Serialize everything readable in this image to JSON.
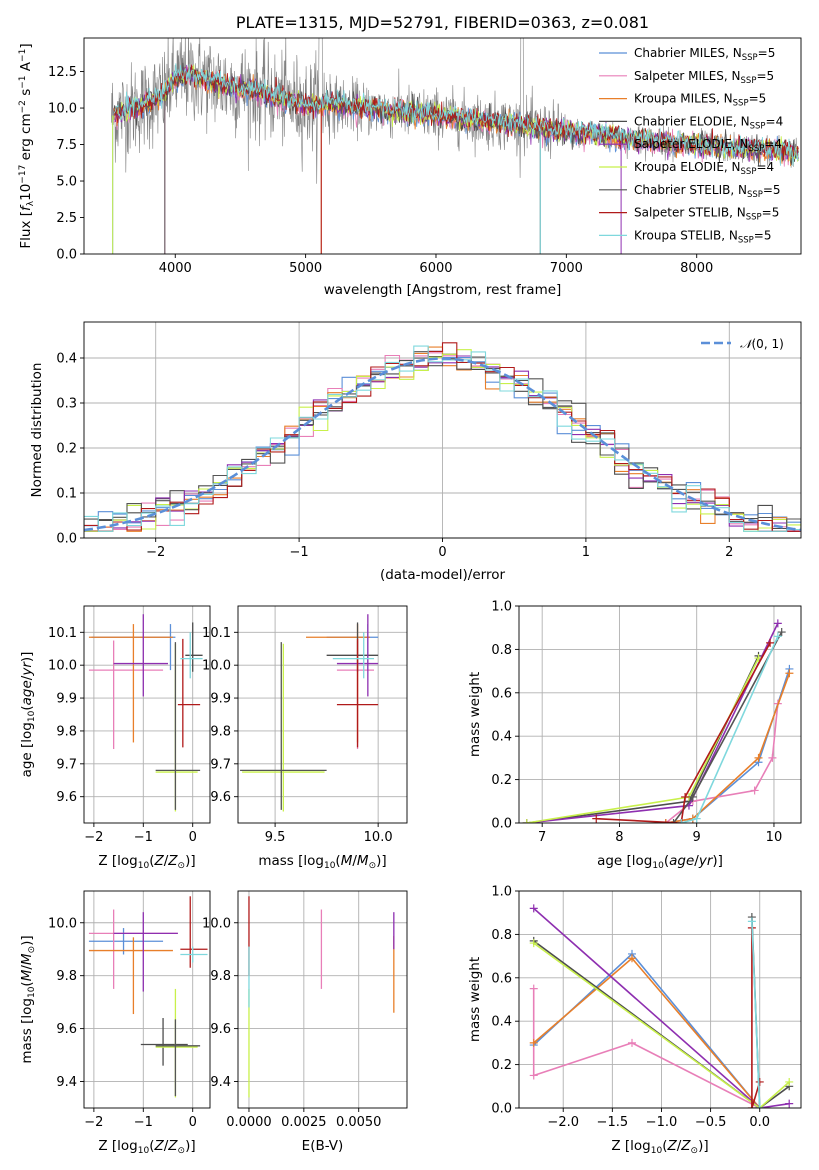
{
  "chart_data": [
    {
      "id": "spectrum",
      "type": "line",
      "title": "PLATE=1315, MJD=52791, FIBERID=0363, z=0.081",
      "xlabel": "wavelength [Angstrom, rest frame]",
      "ylabel": "Flux [f_λ 10^-17 erg cm^-2 s^-1 A^-1]",
      "xlim": [
        3300,
        8800
      ],
      "ylim": [
        0,
        14.8
      ],
      "xticks": [
        4000,
        5000,
        6000,
        7000,
        8000
      ],
      "yticks": [
        "0.0",
        "2.5",
        "5.0",
        "7.5",
        "10.0",
        "12.5"
      ],
      "legend_position": "upper right",
      "data_series": {
        "name": "data",
        "color": "#808080"
      },
      "series": [
        {
          "name": "Chabrier MILES, N_SSP=5",
          "color": "#5b8fd8"
        },
        {
          "name": "Salpeter MILES, N_SSP=5",
          "color": "#e87fb8"
        },
        {
          "name": "Kroupa MILES, N_SSP=5",
          "color": "#e87f2a"
        },
        {
          "name": "Chabrier ELODIE, N_SSP=4",
          "color": "#4d4d4d"
        },
        {
          "name": "Salpeter ELODIE, N_SSP=4",
          "color": "#8e2fb0"
        },
        {
          "name": "Kroupa ELODIE, N_SSP=4",
          "color": "#c8f04a"
        },
        {
          "name": "Chabrier STELIB, N_SSP=5",
          "color": "#555555"
        },
        {
          "name": "Salpeter STELIB, N_SSP=5",
          "color": "#b01a1a"
        },
        {
          "name": "Kroupa STELIB, N_SSP=5",
          "color": "#7fd8dd"
        }
      ],
      "continuum": {
        "wavelength": [
          3520,
          3700,
          3900,
          4000,
          4100,
          4200,
          4400,
          4600,
          4800,
          5000,
          5200,
          5500,
          5800,
          6000,
          6300,
          6600,
          6800,
          7000,
          7200,
          7400,
          7600,
          7800,
          8000,
          8200,
          8400,
          8600,
          8780
        ],
        "flux": [
          9.5,
          10.0,
          10.8,
          12.0,
          12.3,
          12.0,
          11.5,
          11.2,
          10.7,
          10.2,
          10.3,
          9.9,
          9.7,
          9.5,
          9.2,
          8.9,
          8.6,
          8.4,
          8.2,
          8.0,
          7.8,
          7.6,
          7.5,
          7.3,
          7.2,
          7.1,
          7.0
        ]
      }
    },
    {
      "id": "residuals",
      "type": "bar",
      "xlabel": "(data-model)/error",
      "ylabel": "Normed distribution",
      "xlim": [
        -2.5,
        2.5
      ],
      "ylim": [
        0,
        0.48
      ],
      "xticks": [
        "−2",
        "−1",
        "0",
        "1",
        "2"
      ],
      "yticks": [
        "0.0",
        "0.1",
        "0.2",
        "0.3",
        "0.4"
      ],
      "legend": {
        "label": "N(0,1)",
        "position": "upper right",
        "color": "#5b8fd8"
      },
      "bin_width": 0.1
    },
    {
      "id": "age_vs_Z",
      "type": "scatter",
      "xlabel": "Z [log10(Z/Z⊙)]",
      "ylabel": "age  [log10(age/yr)]",
      "xlim": [
        -2.2,
        0.35
      ],
      "ylim": [
        9.52,
        10.18
      ],
      "xticks": [
        "−2",
        "−1",
        "0"
      ],
      "yticks": [
        "9.6",
        "9.7",
        "9.8",
        "9.9",
        "10.0",
        "10.1"
      ],
      "points": [
        {
          "color": "#5b8fd8",
          "x": -0.45,
          "y": 10.085,
          "xerr": [
            1.6,
            0.1
          ],
          "yerr": [
            0.1,
            0.04
          ]
        },
        {
          "color": "#e87fb8",
          "x": -1.6,
          "y": 9.985,
          "xerr": [
            0.5,
            1.0
          ],
          "yerr": [
            0.24,
            0.09
          ]
        },
        {
          "color": "#e87f2a",
          "x": -1.2,
          "y": 10.085,
          "xerr": [
            0.9,
            0.8
          ],
          "yerr": [
            0.32,
            0.04
          ]
        },
        {
          "color": "#4d4d4d",
          "x": 0.0,
          "y": 10.03,
          "xerr": [
            0.15,
            0.2
          ],
          "yerr": [
            0.05,
            0.1
          ]
        },
        {
          "color": "#8e2fb0",
          "x": -1.0,
          "y": 10.005,
          "xerr": [
            0.6,
            0.5
          ],
          "yerr": [
            0.1,
            0.15
          ]
        },
        {
          "color": "#c8f04a",
          "x": -0.35,
          "y": 9.675,
          "xerr": [
            0.4,
            0.45
          ],
          "yerr": [
            0.12,
            0.39
          ]
        },
        {
          "color": "#555555",
          "x": -0.35,
          "y": 9.68,
          "xerr": [
            0.4,
            0.5
          ],
          "yerr": [
            0.12,
            0.39
          ]
        },
        {
          "color": "#b01a1a",
          "x": -0.2,
          "y": 9.88,
          "xerr": [
            0.1,
            0.35
          ],
          "yerr": [
            0.13,
            0.2
          ]
        },
        {
          "color": "#7fd8dd",
          "x": -0.05,
          "y": 10.02,
          "xerr": [
            0.2,
            0.25
          ],
          "yerr": [
            0.06,
            0.08
          ]
        }
      ]
    },
    {
      "id": "age_vs_mass",
      "type": "scatter",
      "xlabel": "mass [log10(M/M⊙)]",
      "ylabel": "",
      "xlim": [
        9.32,
        10.14
      ],
      "ylim": [
        9.52,
        10.18
      ],
      "xticks": [
        "9.5",
        "10.0"
      ],
      "yticks": [
        "9.6",
        "9.7",
        "9.8",
        "9.9",
        "10.0",
        "10.1"
      ],
      "points": [
        {
          "color": "#5b8fd8",
          "x": 9.95,
          "y": 10.085,
          "xerr": [
            0.2,
            0.05
          ],
          "yerr": [
            0.1,
            0.04
          ]
        },
        {
          "color": "#e87fb8",
          "x": 9.9,
          "y": 9.985,
          "xerr": [
            0.1,
            0.08
          ],
          "yerr": [
            0.24,
            0.09
          ]
        },
        {
          "color": "#e87f2a",
          "x": 9.9,
          "y": 10.085,
          "xerr": [
            0.25,
            0.06
          ],
          "yerr": [
            0.32,
            0.04
          ]
        },
        {
          "color": "#4d4d4d",
          "x": 9.9,
          "y": 10.03,
          "xerr": [
            0.15,
            0.1
          ],
          "yerr": [
            0.05,
            0.1
          ]
        },
        {
          "color": "#8e2fb0",
          "x": 9.95,
          "y": 10.005,
          "xerr": [
            0.15,
            0.05
          ],
          "yerr": [
            0.1,
            0.15
          ]
        },
        {
          "color": "#c8f04a",
          "x": 9.54,
          "y": 9.675,
          "xerr": [
            0.2,
            0.2
          ],
          "yerr": [
            0.12,
            0.39
          ]
        },
        {
          "color": "#555555",
          "x": 9.53,
          "y": 9.68,
          "xerr": [
            0.2,
            0.22
          ],
          "yerr": [
            0.12,
            0.39
          ]
        },
        {
          "color": "#b01a1a",
          "x": 9.9,
          "y": 9.88,
          "xerr": [
            0.1,
            0.1
          ],
          "yerr": [
            0.13,
            0.2
          ]
        },
        {
          "color": "#7fd8dd",
          "x": 9.93,
          "y": 10.02,
          "xerr": [
            0.15,
            0.05
          ],
          "yerr": [
            0.06,
            0.08
          ]
        }
      ]
    },
    {
      "id": "massweight_vs_age",
      "type": "line",
      "xlabel": "age  [log10(age/yr)]",
      "ylabel": "mass weight",
      "xlim": [
        6.7,
        10.35
      ],
      "ylim": [
        0,
        1.0
      ],
      "xticks": [
        "7",
        "8",
        "9",
        "10"
      ],
      "yticks": [
        "0.0",
        "0.2",
        "0.4",
        "0.6",
        "0.8",
        "1.0"
      ],
      "series": [
        {
          "color": "#5b8fd8",
          "x": [
            8.6,
            8.95,
            9.8,
            10.2
          ],
          "y": [
            0.0,
            0.02,
            0.28,
            0.71
          ]
        },
        {
          "color": "#e87fb8",
          "x": [
            8.6,
            8.95,
            9.75,
            9.98,
            10.05
          ],
          "y": [
            0.0,
            0.1,
            0.15,
            0.3,
            0.55
          ]
        },
        {
          "color": "#e87f2a",
          "x": [
            8.6,
            8.95,
            9.8,
            10.2
          ],
          "y": [
            0.0,
            0.02,
            0.3,
            0.69
          ]
        },
        {
          "color": "#4d4d4d",
          "x": [
            6.8,
            8.9,
            9.8
          ],
          "y": [
            0.0,
            0.1,
            0.77
          ]
        },
        {
          "color": "#8e2fb0",
          "x": [
            6.8,
            8.9,
            10.05
          ],
          "y": [
            0.0,
            0.08,
            0.92
          ]
        },
        {
          "color": "#c8f04a",
          "x": [
            6.8,
            8.9,
            9.8
          ],
          "y": [
            0.0,
            0.12,
            0.76
          ]
        },
        {
          "color": "#555555",
          "x": [
            8.7,
            8.95,
            10.1
          ],
          "y": [
            0.0,
            0.12,
            0.88
          ]
        },
        {
          "color": "#b01a1a",
          "x": [
            7.7,
            8.8,
            8.85,
            9.95
          ],
          "y": [
            0.02,
            0.0,
            0.12,
            0.83
          ]
        },
        {
          "color": "#7fd8dd",
          "x": [
            8.8,
            9.0,
            10.05
          ],
          "y": [
            0.0,
            0.02,
            0.86
          ]
        }
      ]
    },
    {
      "id": "mass_vs_Z",
      "type": "scatter",
      "xlabel": "Z [log10(Z/Z⊙)]",
      "ylabel": "mass [log10(M/M⊙)]",
      "xlim": [
        -2.2,
        0.35
      ],
      "ylim": [
        9.3,
        10.12
      ],
      "xticks": [
        "−2",
        "−1",
        "0"
      ],
      "yticks": [
        "9.4",
        "9.6",
        "9.8",
        "10.0"
      ],
      "points": [
        {
          "color": "#5b8fd8",
          "x": -1.4,
          "y": 9.93,
          "xerr": [
            0.7,
            0.8
          ],
          "yerr": [
            0.05,
            0.05
          ]
        },
        {
          "color": "#e87fb8",
          "x": -1.6,
          "y": 9.96,
          "xerr": [
            0.5,
            1.3
          ],
          "yerr": [
            0.21,
            0.09
          ]
        },
        {
          "color": "#e87f2a",
          "x": -1.2,
          "y": 9.895,
          "xerr": [
            0.9,
            0.8
          ],
          "yerr": [
            0.24,
            0.05
          ]
        },
        {
          "color": "#4d4d4d",
          "x": -0.6,
          "y": 9.54,
          "xerr": [
            0.45,
            0.5
          ],
          "yerr": [
            0.08,
            0.1
          ]
        },
        {
          "color": "#8e2fb0",
          "x": -1.0,
          "y": 9.96,
          "xerr": [
            0.6,
            0.7
          ],
          "yerr": [
            0.22,
            0.08
          ]
        },
        {
          "color": "#c8f04a",
          "x": -0.35,
          "y": 9.53,
          "xerr": [
            0.4,
            0.45
          ],
          "yerr": [
            0.19,
            0.22
          ]
        },
        {
          "color": "#555555",
          "x": -0.35,
          "y": 9.535,
          "xerr": [
            0.4,
            0.5
          ],
          "yerr": [
            0.19,
            0.1
          ]
        },
        {
          "color": "#b01a1a",
          "x": -0.05,
          "y": 9.9,
          "xerr": [
            0.2,
            0.35
          ],
          "yerr": [
            0.07,
            0.2
          ]
        },
        {
          "color": "#7fd8dd",
          "x": 0.0,
          "y": 9.88,
          "xerr": [
            0.25,
            0.3
          ],
          "yerr": [
            0.03,
            0.03
          ]
        }
      ]
    },
    {
      "id": "mass_vs_EBV",
      "type": "scatter",
      "xlabel": "E(B-V)",
      "ylabel": "",
      "xlim": [
        -0.0005,
        0.0072
      ],
      "ylim": [
        9.3,
        10.12
      ],
      "xticks": [
        "0.0000",
        "0.0025",
        "0.0050"
      ],
      "yticks": [
        "9.4",
        "9.6",
        "9.8",
        "10.0"
      ],
      "points": [
        {
          "color": "#c8f04a",
          "x": 0.0,
          "y": 9.53,
          "xerr": [
            0,
            0
          ],
          "yerr": [
            0.19,
            0.22
          ]
        },
        {
          "color": "#b01a1a",
          "x": 0.0,
          "y": 9.9,
          "xerr": [
            0,
            0
          ],
          "yerr": [
            0.1,
            0.2
          ]
        },
        {
          "color": "#7fd8dd",
          "x": 0.0,
          "y": 9.88,
          "xerr": [
            0,
            0
          ],
          "yerr": [
            0.2,
            0.03
          ]
        },
        {
          "color": "#e87fb8",
          "x": 0.0033,
          "y": 9.96,
          "xerr": [
            0,
            0
          ],
          "yerr": [
            0.21,
            0.09
          ]
        },
        {
          "color": "#e87f2a",
          "x": 0.0066,
          "y": 9.9,
          "xerr": [
            0,
            0
          ],
          "yerr": [
            0.24,
            0.05
          ]
        },
        {
          "color": "#8e2fb0",
          "x": 0.0066,
          "y": 9.96,
          "xerr": [
            0,
            0
          ],
          "yerr": [
            0.06,
            0.08
          ]
        }
      ]
    },
    {
      "id": "massweight_vs_Z",
      "type": "line",
      "xlabel": "Z [log10(Z/Z⊙)]",
      "ylabel": "mass weight",
      "xlim": [
        -2.45,
        0.42
      ],
      "ylim": [
        0,
        1.0
      ],
      "xticks": [
        "−2.0",
        "−1.5",
        "−1.0",
        "−0.5",
        "0.0"
      ],
      "yticks": [
        "0.0",
        "0.2",
        "0.4",
        "0.6",
        "0.8",
        "1.0"
      ],
      "series": [
        {
          "color": "#5b8fd8",
          "x": [
            -2.3,
            -1.3,
            0.0
          ],
          "y": [
            0.29,
            0.71,
            0.0
          ]
        },
        {
          "color": "#e87fb8",
          "x": [
            -2.3,
            -2.3,
            -1.3,
            0.0
          ],
          "y": [
            0.55,
            0.15,
            0.3,
            0.0
          ]
        },
        {
          "color": "#e87f2a",
          "x": [
            -2.3,
            -1.3,
            0.0
          ],
          "y": [
            0.3,
            0.69,
            0.0
          ]
        },
        {
          "color": "#4d4d4d",
          "x": [
            -2.3,
            0.0,
            0.3
          ],
          "y": [
            0.77,
            0.0,
            0.1
          ]
        },
        {
          "color": "#8e2fb0",
          "x": [
            -2.3,
            0.0,
            0.3
          ],
          "y": [
            0.92,
            0.0,
            0.02
          ]
        },
        {
          "color": "#c8f04a",
          "x": [
            -2.3,
            0.0,
            0.3
          ],
          "y": [
            0.76,
            0.0,
            0.12
          ]
        },
        {
          "color": "#555555",
          "x": [
            -0.08,
            0.0
          ],
          "y": [
            0.88,
            0.0
          ]
        },
        {
          "color": "#b01a1a",
          "x": [
            -0.08,
            -0.08,
            0.0
          ],
          "y": [
            0.83,
            0.0,
            0.12
          ]
        },
        {
          "color": "#7fd8dd",
          "x": [
            -0.08,
            0.0
          ],
          "y": [
            0.86,
            0.0
          ]
        }
      ]
    }
  ]
}
